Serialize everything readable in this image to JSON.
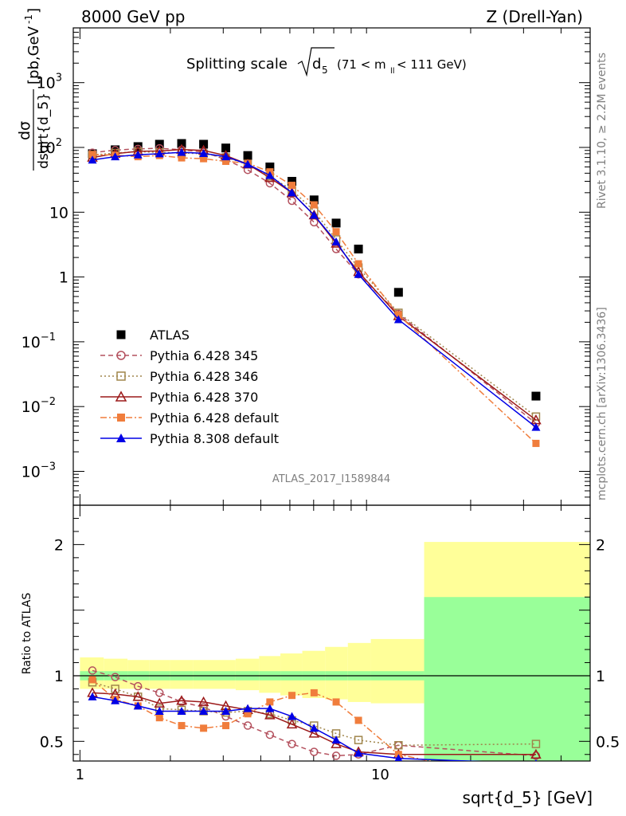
{
  "header": {
    "left": "8000 GeV pp",
    "right": "Z (Drell-Yan)"
  },
  "side_right_top": "Rivet 3.1.10, ≥ 2.2M events",
  "side_right_bottom": "mcplots.cern.ch [arXiv:1306.3436]",
  "watermark": "ATLAS_2017_I1589844",
  "plot_title": {
    "main": "Splitting scale",
    "root_arg": "d",
    "root_sub": "5",
    "cut": "(71 < m",
    "cut_sub": "ll",
    "cut_end": " < 111 GeV)"
  },
  "ylabel_top": {
    "num": "dσ",
    "den": "dsqrt{d_5}",
    "unit": "[pb,GeV",
    "unit_sup": "-1",
    "unit_end": "]"
  },
  "ylabel_bottom": "Ratio to ATLAS",
  "xlabel": "sqrt{d_5} [GeV]",
  "legend": [
    {
      "label": "ATLAS",
      "color": "#000000",
      "marker": "square-filled",
      "line": "none"
    },
    {
      "label": "Pythia 6.428 345",
      "color": "#b4515e",
      "marker": "circle-open",
      "line": "dashed"
    },
    {
      "label": "Pythia 6.428 346",
      "color": "#a0864c",
      "marker": "square-open",
      "line": "dotted"
    },
    {
      "label": "Pythia 6.428 370",
      "color": "#9c1a1a",
      "marker": "triangle-open",
      "line": "solid"
    },
    {
      "label": "Pythia 6.428 default",
      "color": "#f07d3c",
      "marker": "square-filled",
      "line": "dashdot"
    },
    {
      "label": "Pythia 8.308 default",
      "color": "#0000e6",
      "marker": "triangle-filled",
      "line": "solid"
    }
  ],
  "chart_data": [
    {
      "type": "scatter",
      "xscale": "log",
      "yscale": "log",
      "xlim": [
        0.95,
        50
      ],
      "ylim": [
        0.0003,
        7000
      ],
      "x_ticks": [
        "1",
        "10"
      ],
      "y_ticks": [
        "10^-3",
        "10^-2",
        "10^-1",
        "1",
        "10",
        "10^2",
        "10^3"
      ],
      "x": [
        1.1,
        1.31,
        1.56,
        1.84,
        2.18,
        2.58,
        3.06,
        3.62,
        4.29,
        5.08,
        6.02,
        7.13,
        8.46,
        11.5,
        33.0
      ],
      "series": [
        {
          "name": "ATLAS",
          "values": [
            80,
            92,
            103,
            112,
            115,
            112,
            98,
            75,
            50,
            30,
            15.5,
            6.8,
            2.7,
            0.58,
            0.0145
          ]
        },
        {
          "name": "Pythia 6.428 345",
          "values": [
            83,
            91,
            95,
            97,
            92,
            85,
            65,
            45,
            28,
            15,
            7,
            2.7,
            1.1,
            0.27,
            0.0055
          ]
        },
        {
          "name": "Pythia 6.428 346",
          "values": [
            76,
            82,
            86,
            84,
            82,
            80,
            70,
            55,
            36,
            22,
            10.5,
            3.8,
            1.4,
            0.28,
            0.007
          ]
        },
        {
          "name": "Pythia 6.428 370",
          "values": [
            70,
            80,
            87,
            88,
            93,
            90,
            75,
            55,
            34,
            20,
            9,
            3.3,
            1.2,
            0.25,
            0.0062
          ]
        },
        {
          "name": "Pythia 6.428 default",
          "values": [
            78,
            76,
            72,
            75,
            69,
            67,
            61,
            57,
            42,
            26,
            13,
            5,
            1.6,
            0.26,
            0.0027
          ]
        },
        {
          "name": "Pythia 8.308 default",
          "values": [
            64,
            72,
            77,
            80,
            84,
            81,
            72,
            55,
            37,
            20,
            9,
            3.5,
            1.1,
            0.22,
            0.0048
          ]
        }
      ]
    },
    {
      "type": "line",
      "xscale": "log",
      "xlim": [
        0.95,
        50
      ],
      "ylim": [
        0.35,
        2.3
      ],
      "ylabel": "Ratio to ATLAS",
      "y_ticks": [
        "0.5",
        "1",
        "2"
      ],
      "reference": 1,
      "x": [
        1.1,
        1.31,
        1.56,
        1.84,
        2.18,
        2.58,
        3.06,
        3.62,
        4.29,
        5.08,
        6.02,
        7.13,
        8.46,
        11.5,
        33.0
      ],
      "series": [
        {
          "name": "Pythia 6.428 345",
          "values": [
            1.04,
            0.99,
            0.92,
            0.87,
            0.8,
            0.76,
            0.69,
            0.62,
            0.55,
            0.48,
            0.42,
            0.39,
            0.4,
            0.47,
            0.39
          ]
        },
        {
          "name": "Pythia 6.428 346",
          "values": [
            0.95,
            0.9,
            0.84,
            0.75,
            0.74,
            0.73,
            0.72,
            0.73,
            0.71,
            0.66,
            0.62,
            0.56,
            0.51,
            0.47,
            0.48
          ]
        },
        {
          "name": "Pythia 6.428 370",
          "values": [
            0.87,
            0.86,
            0.84,
            0.79,
            0.81,
            0.8,
            0.77,
            0.74,
            0.7,
            0.63,
            0.56,
            0.48,
            0.42,
            0.4,
            0.4
          ]
        },
        {
          "name": "Pythia 6.428 default",
          "values": [
            0.97,
            0.82,
            0.77,
            0.68,
            0.62,
            0.6,
            0.62,
            0.71,
            0.8,
            0.85,
            0.87,
            0.8,
            0.66,
            0.4,
            0.18
          ]
        },
        {
          "name": "Pythia 8.308 default",
          "values": [
            0.84,
            0.81,
            0.77,
            0.73,
            0.73,
            0.73,
            0.73,
            0.75,
            0.75,
            0.69,
            0.6,
            0.51,
            0.41,
            0.37,
            0.33
          ]
        }
      ],
      "band_edges": [
        1.0,
        1.2,
        1.44,
        1.7,
        2.0,
        2.38,
        2.8,
        3.3,
        3.95,
        4.65,
        5.5,
        6.55,
        7.8,
        9.3,
        14.0,
        50.0
      ],
      "band_inner": [
        0.035,
        0.035,
        0.035,
        0.035,
        0.035,
        0.035,
        0.035,
        0.035,
        0.035,
        0.035,
        0.035,
        0.035,
        0.035,
        0.035,
        0.6
      ],
      "band_outer_hi": [
        0.14,
        0.13,
        0.12,
        0.12,
        0.12,
        0.12,
        0.12,
        0.13,
        0.15,
        0.17,
        0.19,
        0.22,
        0.25,
        0.28,
        1.02
      ],
      "band_outer_lo": [
        0.1,
        0.1,
        0.1,
        0.1,
        0.1,
        0.1,
        0.1,
        0.11,
        0.13,
        0.15,
        0.17,
        0.18,
        0.2,
        0.21,
        0.99
      ]
    }
  ]
}
